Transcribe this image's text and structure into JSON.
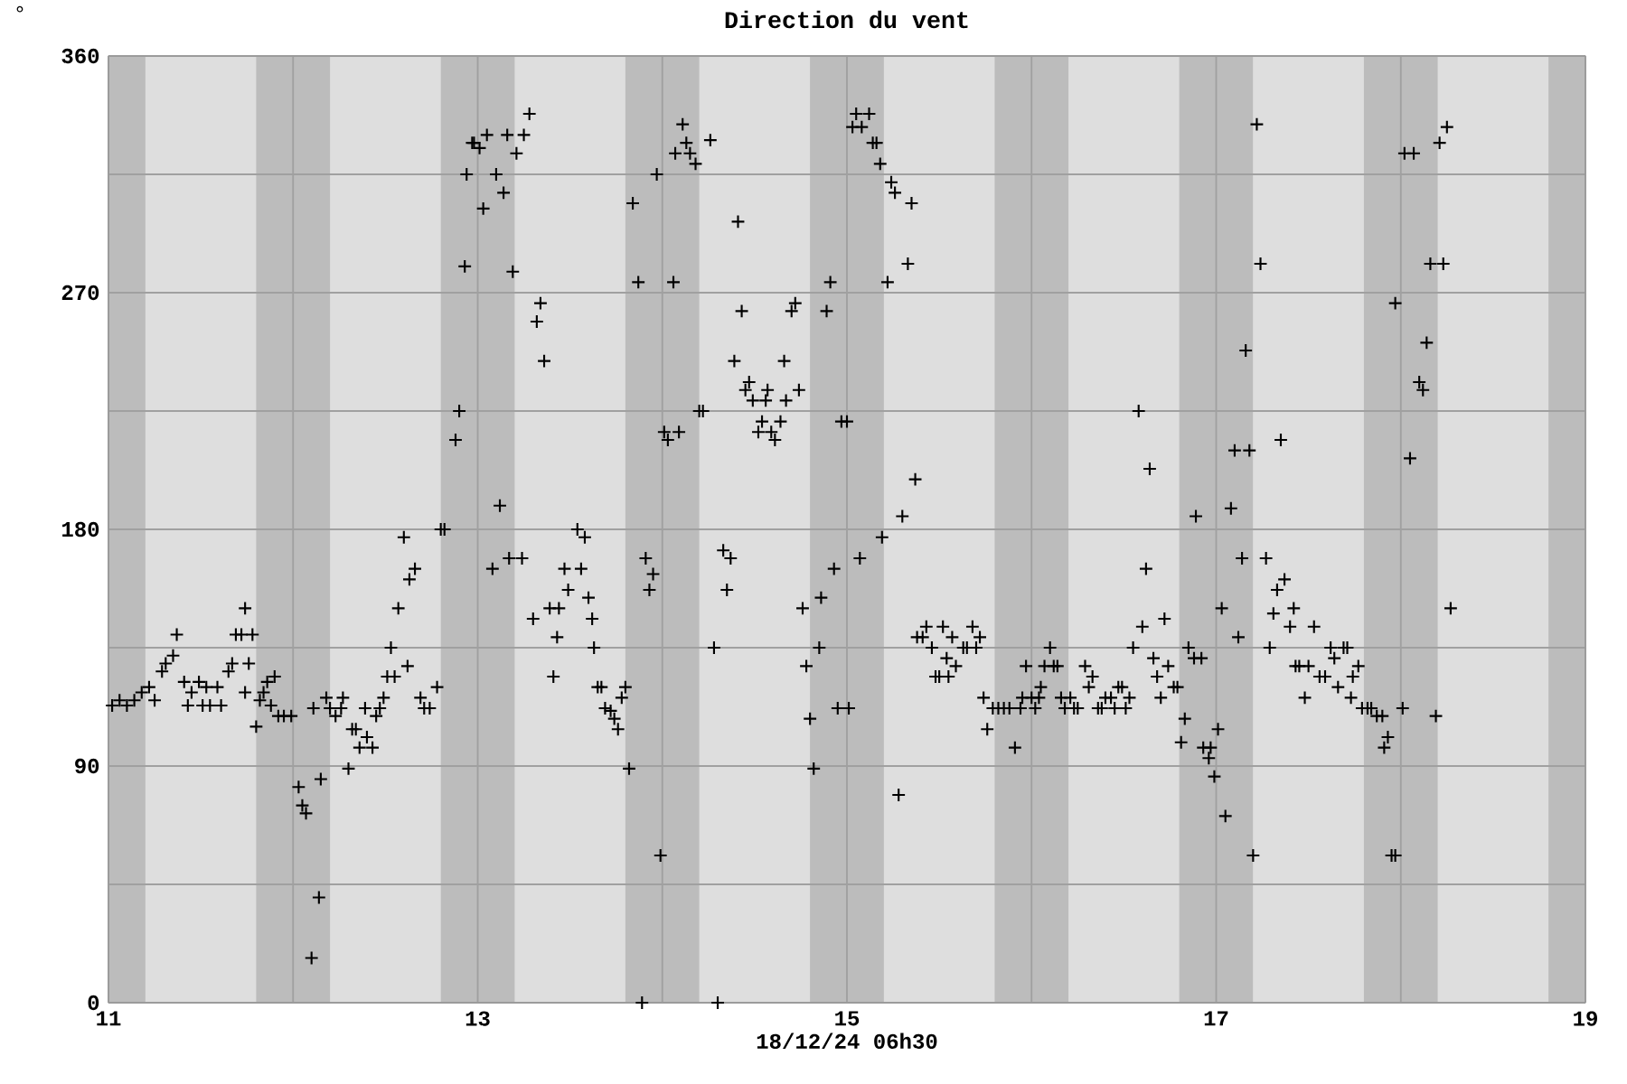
{
  "chart_data": {
    "type": "scatter",
    "title": "Direction du vent",
    "xlabel": "18/12/24 06h30",
    "ylabel": "°",
    "xlim": [
      11,
      19
    ],
    "ylim": [
      0,
      360
    ],
    "xticks": [
      11,
      {
        "value": 12,
        "label": null
      },
      13,
      {
        "value": 14,
        "label": null
      },
      15,
      {
        "value": 16,
        "label": null
      },
      17,
      {
        "value": 18,
        "label": null
      },
      19
    ],
    "yticks": [
      0,
      {
        "value": 45,
        "label": null
      },
      90,
      {
        "value": 135,
        "label": null
      },
      180,
      {
        "value": 225,
        "label": null
      },
      270,
      {
        "value": 315,
        "label": null
      },
      360
    ],
    "grid": true,
    "marker": "cross",
    "color": "#000000",
    "bands": [
      {
        "axis": "x",
        "from": 11.0,
        "to": 11.2,
        "color": "#bcbcbc"
      },
      {
        "axis": "x",
        "from": 11.8,
        "to": 12.2,
        "color": "#bcbcbc"
      },
      {
        "axis": "x",
        "from": 12.8,
        "to": 13.2,
        "color": "#bcbcbc"
      },
      {
        "axis": "x",
        "from": 13.8,
        "to": 14.2,
        "color": "#bcbcbc"
      },
      {
        "axis": "x",
        "from": 14.8,
        "to": 15.2,
        "color": "#bcbcbc"
      },
      {
        "axis": "x",
        "from": 15.8,
        "to": 16.2,
        "color": "#bcbcbc"
      },
      {
        "axis": "x",
        "from": 16.8,
        "to": 17.2,
        "color": "#bcbcbc"
      },
      {
        "axis": "x",
        "from": 17.8,
        "to": 18.2,
        "color": "#bcbcbc"
      },
      {
        "axis": "x",
        "from": 18.8,
        "to": 19.0,
        "color": "#bcbcbc"
      }
    ],
    "x": [
      11.02,
      11.06,
      11.1,
      11.14,
      11.18,
      11.22,
      11.25,
      11.29,
      11.31,
      11.35,
      11.37,
      11.41,
      11.43,
      11.45,
      11.49,
      11.51,
      11.53,
      11.55,
      11.59,
      11.61,
      11.65,
      11.67,
      11.69,
      11.72,
      11.74,
      11.74,
      11.76,
      11.78,
      11.8,
      11.82,
      11.84,
      11.86,
      11.88,
      11.9,
      11.92,
      11.95,
      11.99,
      12.03,
      12.05,
      12.07,
      12.1,
      12.14,
      12.15,
      12.11,
      12.18,
      12.2,
      12.23,
      12.26,
      12.27,
      12.3,
      12.32,
      12.34,
      12.36,
      12.39,
      12.4,
      12.43,
      12.45,
      12.47,
      12.49,
      12.51,
      12.53,
      12.55,
      12.57,
      12.6,
      12.62,
      12.63,
      12.66,
      12.69,
      12.71,
      12.74,
      12.78,
      12.8,
      12.82,
      12.88,
      12.9,
      12.93,
      12.94,
      12.97,
      12.98,
      13.01,
      13.03,
      13.05,
      13.1,
      13.14,
      13.16,
      13.19,
      13.21,
      13.25,
      13.28,
      13.32,
      13.34,
      13.36,
      13.12,
      13.08,
      13.17,
      13.24,
      13.3,
      13.39,
      13.41,
      13.43,
      13.44,
      13.47,
      13.49,
      13.54,
      13.56,
      13.58,
      13.6,
      13.62,
      13.63,
      13.65,
      13.67,
      13.69,
      13.72,
      13.74,
      13.76,
      13.78,
      13.8,
      13.82,
      13.84,
      13.87,
      13.89,
      13.91,
      13.93,
      13.95,
      13.97,
      13.99,
      14.01,
      14.03,
      14.06,
      14.07,
      14.09,
      14.11,
      14.13,
      14.15,
      14.18,
      14.2,
      14.22,
      14.26,
      14.28,
      14.3,
      14.33,
      14.35,
      14.37,
      14.39,
      14.41,
      14.43,
      14.45,
      14.47,
      14.49,
      14.52,
      14.54,
      14.56,
      14.57,
      14.59,
      14.61,
      14.64,
      14.66,
      14.67,
      14.7,
      14.72,
      14.74,
      14.76,
      14.78,
      14.8,
      14.82,
      14.85,
      14.86,
      14.89,
      14.91,
      14.93,
      14.95,
      15.01,
      14.97,
      15.0,
      15.03,
      15.05,
      15.08,
      15.12,
      15.07,
      15.14,
      15.16,
      15.18,
      15.19,
      15.22,
      15.24,
      15.26,
      15.28,
      15.3,
      15.33,
      15.35,
      15.37,
      15.38,
      15.41,
      15.43,
      15.46,
      15.48,
      15.5,
      15.52,
      15.54,
      15.55,
      15.57,
      15.59,
      15.63,
      15.65,
      15.68,
      15.7,
      15.72,
      15.74,
      15.76,
      15.79,
      15.82,
      15.85,
      15.88,
      15.91,
      15.94,
      15.95,
      15.97,
      16.0,
      16.02,
      16.04,
      16.05,
      16.07,
      16.1,
      16.12,
      16.14,
      16.16,
      16.18,
      16.21,
      16.23,
      16.25,
      16.29,
      16.31,
      16.33,
      16.36,
      16.38,
      16.4,
      16.43,
      16.45,
      16.47,
      16.49,
      16.51,
      16.53,
      16.55,
      16.58,
      16.6,
      16.62,
      16.64,
      16.66,
      16.68,
      16.7,
      16.72,
      16.74,
      16.77,
      16.79,
      16.81,
      16.83,
      16.85,
      16.88,
      16.89,
      16.92,
      16.93,
      16.96,
      16.97,
      16.99,
      17.01,
      17.03,
      17.05,
      17.08,
      17.1,
      17.12,
      17.14,
      17.16,
      17.18,
      17.2,
      17.22,
      17.24,
      17.27,
      17.29,
      17.31,
      17.33,
      17.35,
      17.37,
      17.4,
      17.42,
      17.43,
      17.45,
      17.48,
      17.5,
      17.53,
      17.56,
      17.59,
      17.62,
      17.64,
      17.66,
      17.69,
      17.71,
      17.73,
      17.74,
      17.77,
      17.79,
      17.82,
      17.84,
      17.87,
      17.9,
      17.91,
      17.93,
      17.95,
      17.97,
      17.97,
      18.01,
      18.02,
      18.05,
      18.07,
      18.1,
      18.12,
      18.14,
      18.16,
      18.19,
      18.21,
      18.23,
      18.25,
      18.27
    ],
    "values": [
      113,
      115,
      113,
      115,
      118,
      120,
      115,
      126,
      129,
      132,
      140,
      122,
      113,
      118,
      122,
      113,
      120,
      113,
      120,
      113,
      126,
      129,
      140,
      140,
      118,
      150,
      129,
      140,
      105,
      115,
      118,
      122,
      113,
      124,
      109,
      109,
      109,
      82,
      75,
      72,
      17,
      40,
      85,
      112,
      116,
      112,
      109,
      112,
      116,
      89,
      104,
      104,
      97,
      112,
      101,
      97,
      109,
      112,
      116,
      124,
      135,
      124,
      150,
      177,
      128,
      161,
      165,
      116,
      112,
      112,
      120,
      180,
      180,
      214,
      225,
      280,
      315,
      327,
      327,
      325,
      302,
      330,
      315,
      308,
      330,
      278,
      323,
      330,
      338,
      259,
      266,
      244,
      189,
      165,
      169,
      169,
      146,
      150,
      124,
      139,
      150,
      165,
      157,
      180,
      165,
      177,
      154,
      146,
      135,
      120,
      120,
      112,
      111,
      108,
      104,
      116,
      120,
      89,
      304,
      274,
      0,
      169,
      157,
      163,
      315,
      56,
      217,
      214,
      274,
      323,
      217,
      334,
      327,
      323,
      319,
      225,
      225,
      328,
      135,
      0,
      172,
      157,
      169,
      244,
      297,
      263,
      233,
      236,
      229,
      217,
      221,
      229,
      233,
      217,
      214,
      221,
      244,
      229,
      263,
      266,
      233,
      150,
      128,
      108,
      89,
      135,
      154,
      263,
      274,
      165,
      112,
      112,
      221,
      221,
      333,
      338,
      333,
      338,
      169,
      327,
      327,
      319,
      177,
      274,
      312,
      308,
      79,
      185,
      281,
      304,
      199,
      139,
      139,
      143,
      135,
      124,
      124,
      143,
      131,
      124,
      139,
      128,
      135,
      135,
      143,
      135,
      139,
      116,
      104,
      112,
      112,
      112,
      112,
      97,
      112,
      116,
      128,
      116,
      112,
      116,
      120,
      128,
      135,
      128,
      128,
      116,
      112,
      116,
      112,
      112,
      128,
      120,
      124,
      112,
      112,
      116,
      116,
      112,
      120,
      120,
      112,
      116,
      135,
      225,
      143,
      165,
      203,
      131,
      124,
      116,
      146,
      128,
      120,
      120,
      99,
      108,
      135,
      131,
      185,
      131,
      97,
      93,
      97,
      86,
      104,
      150,
      71,
      188,
      210,
      139,
      169,
      248,
      210,
      56,
      334,
      281,
      169,
      135,
      148,
      157,
      214,
      161,
      143,
      150,
      128,
      128,
      116,
      128,
      143,
      124,
      124,
      135,
      131,
      120,
      135,
      135,
      116,
      124,
      128,
      112,
      112,
      112,
      109,
      109,
      97,
      101,
      56,
      56,
      266,
      112,
      323,
      207,
      323,
      236,
      233,
      251,
      281,
      109,
      327,
      281,
      333,
      150
    ]
  }
}
